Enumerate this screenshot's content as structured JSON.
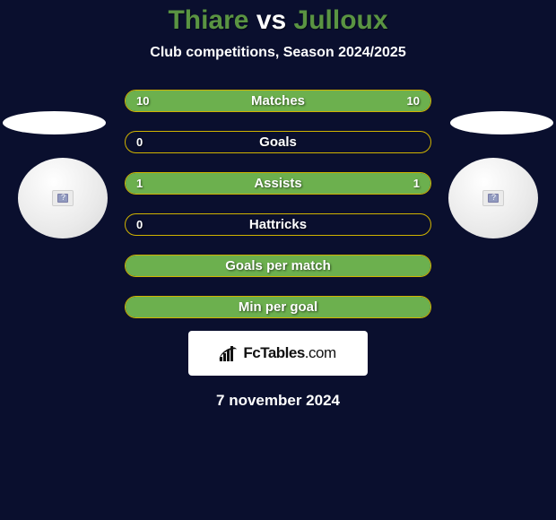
{
  "header": {
    "player1": "Thiare",
    "vs": "vs",
    "player2": "Julloux",
    "subtitle": "Club competitions, Season 2024/2025"
  },
  "colors": {
    "background": "#0a0f2e",
    "accent_green": "#6cb04e",
    "title_green": "#5a9442",
    "border_yellow": "#d0b300",
    "text": "#ffffff",
    "logo_box_bg": "#ffffff",
    "logo_text": "#111111"
  },
  "bars": [
    {
      "label": "Matches",
      "left": "10",
      "right": "10",
      "left_pct": 50,
      "right_pct": 50
    },
    {
      "label": "Goals",
      "left": "0",
      "right": null,
      "left_pct": 0,
      "right_pct": 0
    },
    {
      "label": "Assists",
      "left": "1",
      "right": "1",
      "left_pct": 50,
      "right_pct": 50
    },
    {
      "label": "Hattricks",
      "left": "0",
      "right": null,
      "left_pct": 0,
      "right_pct": 0
    },
    {
      "label": "Goals per match",
      "left": null,
      "right": null,
      "left_pct": 100,
      "right_pct": 0
    },
    {
      "label": "Min per goal",
      "left": null,
      "right": null,
      "left_pct": 100,
      "right_pct": 0
    }
  ],
  "logo": {
    "text_bold": "FcTables",
    "text_light": ".com"
  },
  "date": "7 november 2024"
}
